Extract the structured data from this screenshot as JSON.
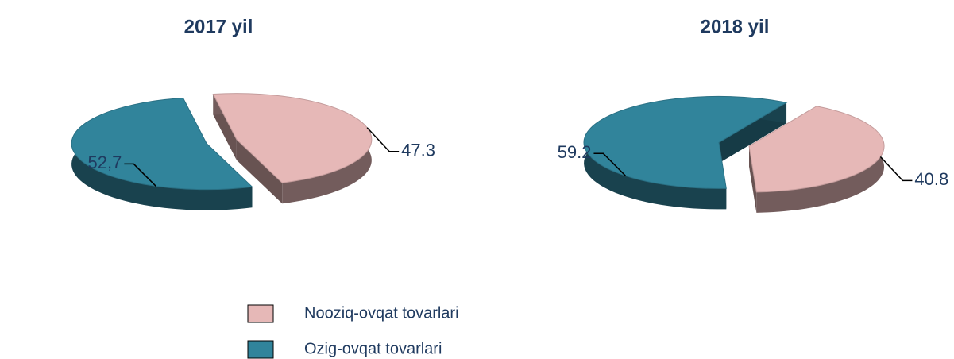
{
  "chart_data": [
    {
      "type": "pie",
      "title": "2017 yil",
      "categories": [
        "Nooziq-ovqat tovarlari",
        "Ozig-ovqat tovarlari"
      ],
      "values": [
        47.3,
        52.7
      ],
      "value_labels": [
        "47.3",
        "52,7"
      ],
      "colors": [
        "#e6b8b7",
        "#31849b"
      ]
    },
    {
      "type": "pie",
      "title": "2018 yil",
      "values": [
        40.8,
        59.2
      ],
      "value_labels": [
        "40.8",
        "59.2"
      ],
      "colors": [
        "#e6b8b7",
        "#31849b"
      ]
    }
  ]
}
